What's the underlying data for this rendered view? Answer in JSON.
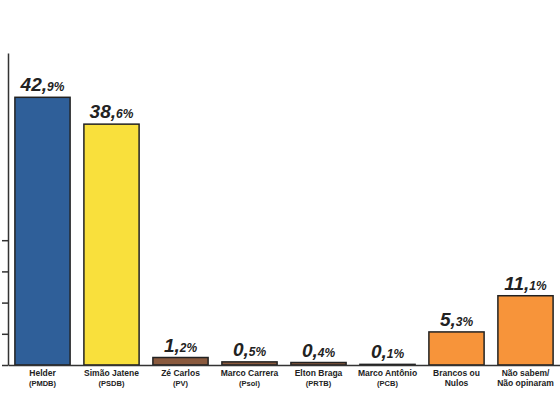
{
  "chart_data": {
    "type": "bar",
    "categories": [
      "Helder (PMDB)",
      "Simão Jatene (PSDB)",
      "Zé Carlos (PV)",
      "Marco Carrera (Psol)",
      "Elton Braga (PRTB)",
      "Marco Antônio (PCB)",
      "Brancos ou Nulos",
      "Não sabem/ Não opinaram"
    ],
    "values": [
      42.9,
      38.6,
      1.2,
      0.5,
      0.4,
      0.1,
      5.3,
      11.1
    ],
    "value_labels": [
      "42,9%",
      "38,6%",
      "1,2%",
      "0,5%",
      "0,4%",
      "0,1%",
      "5,3%",
      "11,1%"
    ],
    "colors": [
      "#2f5f99",
      "#f9e03c",
      "#8a5a3e",
      "#8a5a3e",
      "#8a5a3e",
      "#8a5a3e",
      "#f7943a",
      "#f7943a"
    ],
    "ylim": [
      0,
      50
    ],
    "yticks": [
      0,
      5,
      10,
      15,
      20
    ],
    "data_labels": true,
    "tick_labels": false,
    "grid": false
  }
}
